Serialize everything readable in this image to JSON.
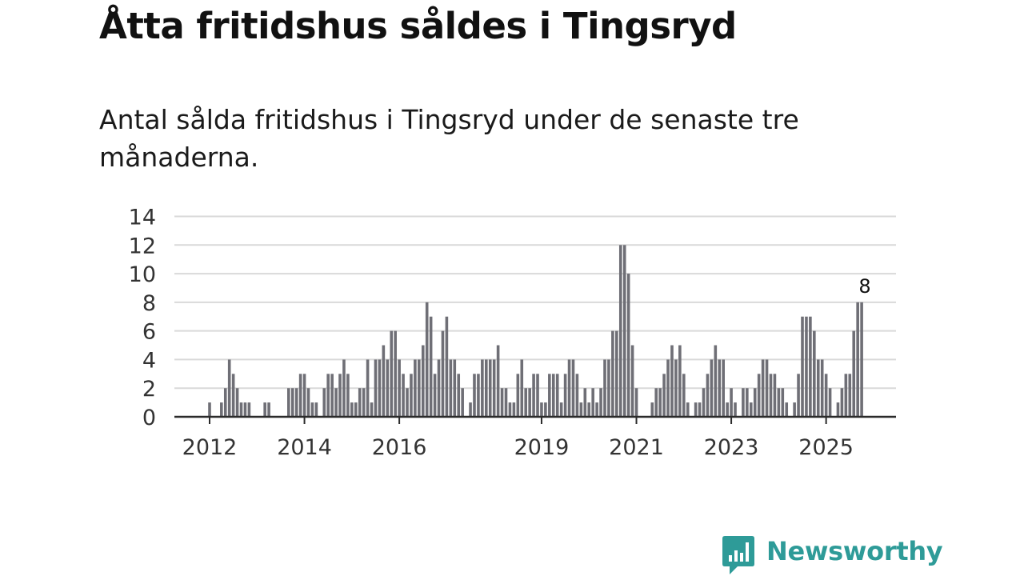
{
  "title": "Åtta fritidshus såldes i Tingsryd",
  "subtitle": "Antal sålda fritidshus i Tingsryd under de senaste tre månaderna.",
  "brand": {
    "name": "Newsworthy",
    "color": "#2e9b98",
    "icon": "newsworthy-chat-bars-icon"
  },
  "colors": {
    "bar": "#6f6f76",
    "highlight": "#21a39d",
    "grid": "#d9d9d9",
    "axis": "#2b2b2b"
  },
  "chart_data": {
    "type": "bar",
    "title": "Åtta fritidshus såldes i Tingsryd",
    "xlabel": "",
    "ylabel": "",
    "ylim": [
      0,
      14
    ],
    "yticks": [
      0,
      2,
      4,
      6,
      8,
      10,
      12,
      14
    ],
    "xticks": [
      {
        "label": "2012",
        "index": 0
      },
      {
        "label": "2014",
        "index": 24
      },
      {
        "label": "2016",
        "index": 48
      },
      {
        "label": "2019",
        "index": 84
      },
      {
        "label": "2021",
        "index": 108
      },
      {
        "label": "2023",
        "index": 132
      },
      {
        "label": "2025",
        "index": 156
      }
    ],
    "grid": true,
    "values": [
      1,
      0,
      0,
      1,
      2,
      4,
      3,
      2,
      1,
      1,
      1,
      0,
      0,
      0,
      1,
      1,
      0,
      0,
      0,
      0,
      2,
      2,
      2,
      3,
      3,
      2,
      1,
      1,
      0,
      2,
      3,
      3,
      2,
      3,
      4,
      3,
      1,
      1,
      2,
      2,
      4,
      1,
      4,
      4,
      5,
      4,
      6,
      6,
      4,
      3,
      2,
      3,
      4,
      4,
      5,
      8,
      7,
      3,
      4,
      6,
      7,
      4,
      4,
      3,
      2,
      0,
      1,
      3,
      3,
      4,
      4,
      4,
      4,
      5,
      2,
      2,
      1,
      1,
      3,
      4,
      2,
      2,
      3,
      3,
      1,
      1,
      3,
      3,
      3,
      1,
      3,
      4,
      4,
      3,
      1,
      2,
      1,
      2,
      1,
      2,
      4,
      4,
      6,
      6,
      12,
      12,
      10,
      5,
      2,
      0,
      0,
      0,
      1,
      2,
      2,
      3,
      4,
      5,
      4,
      5,
      3,
      1,
      0,
      1,
      1,
      2,
      3,
      4,
      5,
      4,
      4,
      1,
      2,
      1,
      0,
      2,
      2,
      1,
      2,
      3,
      4,
      4,
      3,
      3,
      2,
      2,
      1,
      0,
      1,
      3,
      7,
      7,
      7,
      6,
      4,
      4,
      3,
      2,
      0,
      1,
      2,
      3,
      3,
      6,
      8,
      8
    ],
    "highlight": {
      "index": 166,
      "value": 8,
      "label": "8"
    }
  }
}
